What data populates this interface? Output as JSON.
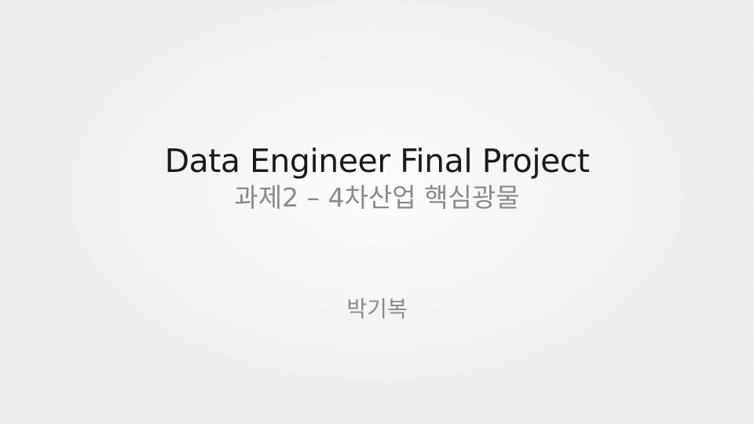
{
  "slide": {
    "title": "Data Engineer Final Project",
    "subtitle": "과제2 – 4차산업 핵심광물",
    "author": "박기복"
  }
}
